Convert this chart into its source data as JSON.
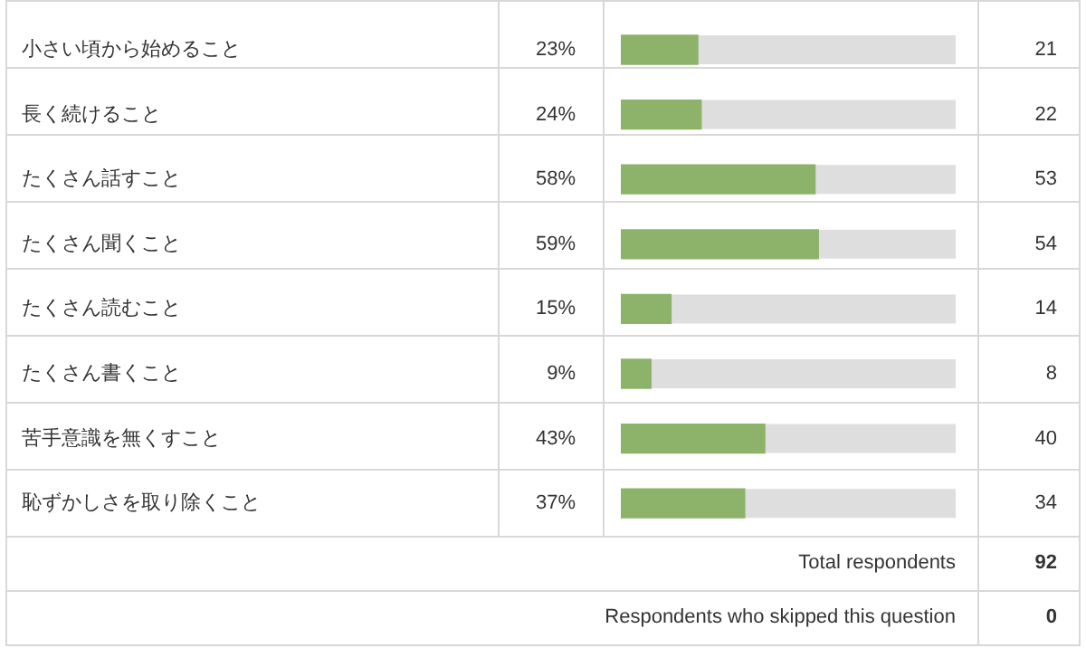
{
  "chart_data": {
    "type": "bar",
    "orientation": "horizontal",
    "categories": [
      "小さい頃から始めること",
      "長く続けること",
      "たくさん話すこと",
      "たくさん聞くこと",
      "たくさん読むこと",
      "たくさん書くこと",
      "苦手意識を無くすこと",
      "恥ずかしさを取り除くこと"
    ],
    "values": [
      23,
      24,
      58,
      59,
      15,
      9,
      43,
      37
    ],
    "value_labels": [
      "23%",
      "24%",
      "58%",
      "59%",
      "15%",
      "9%",
      "43%",
      "37%"
    ],
    "color": "#8db36b",
    "xlim": [
      0,
      100
    ],
    "tick_labels": "y",
    "grid": false,
    "legend": false,
    "annotations": [
      "21",
      "22",
      "53",
      "54",
      "14",
      "8",
      "40",
      "34",
      "Total respondents",
      "92",
      "Respondents who skipped this question",
      "0"
    ]
  }
}
